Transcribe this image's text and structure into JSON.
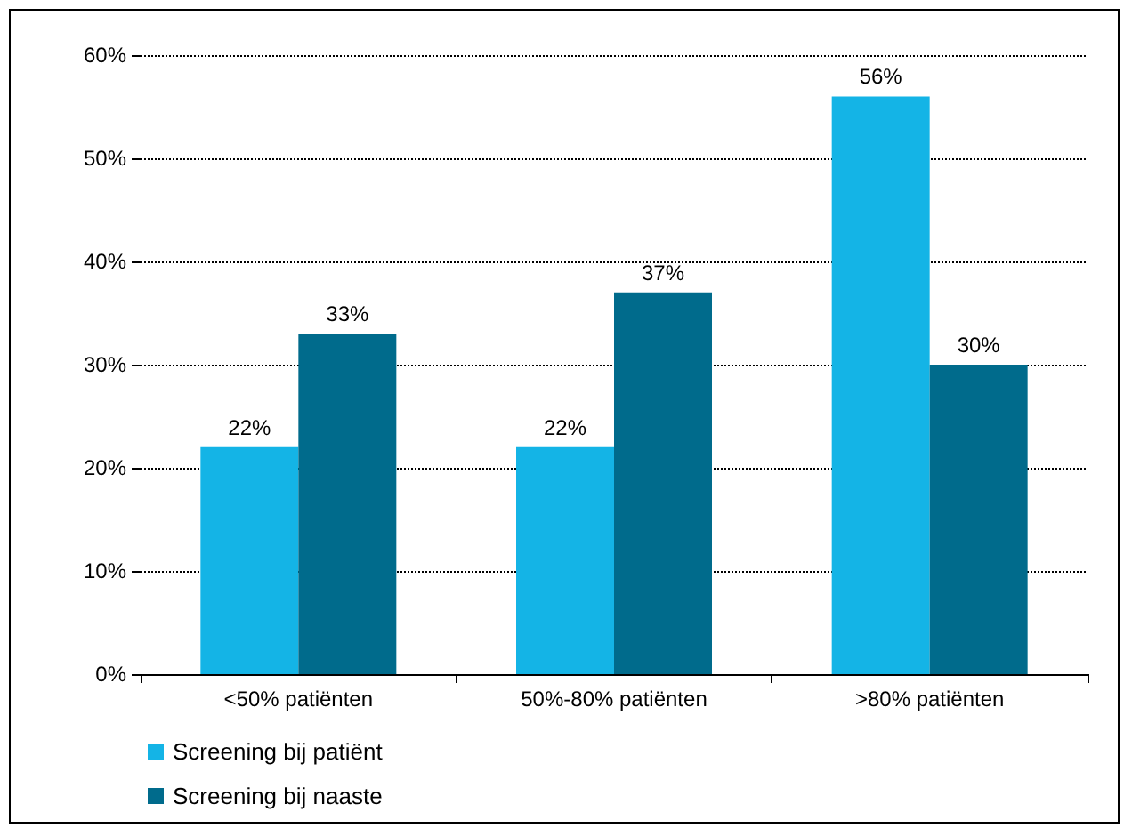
{
  "chart_data": {
    "type": "bar",
    "categories": [
      "<50% patiënten",
      "50%-80% patiënten",
      ">80% patiënten"
    ],
    "series": [
      {
        "name": "Screening bij patiënt",
        "color": "#14b4e6",
        "values": [
          22,
          22,
          56
        ],
        "value_labels": [
          "22%",
          "22%",
          "56%"
        ]
      },
      {
        "name": "Screening bij naaste",
        "color": "#006b8c",
        "values": [
          33,
          37,
          30
        ],
        "value_labels": [
          "33%",
          "37%",
          "30%"
        ]
      }
    ],
    "ylim": [
      0,
      60
    ],
    "yticks": [
      {
        "value": 0,
        "label": "0%"
      },
      {
        "value": 10,
        "label": "10%"
      },
      {
        "value": 20,
        "label": "20%"
      },
      {
        "value": 30,
        "label": "30%"
      },
      {
        "value": 40,
        "label": "40%"
      },
      {
        "value": 50,
        "label": "50%"
      },
      {
        "value": 60,
        "label": "60%"
      }
    ],
    "grid": "y",
    "legend": "bottom left"
  }
}
